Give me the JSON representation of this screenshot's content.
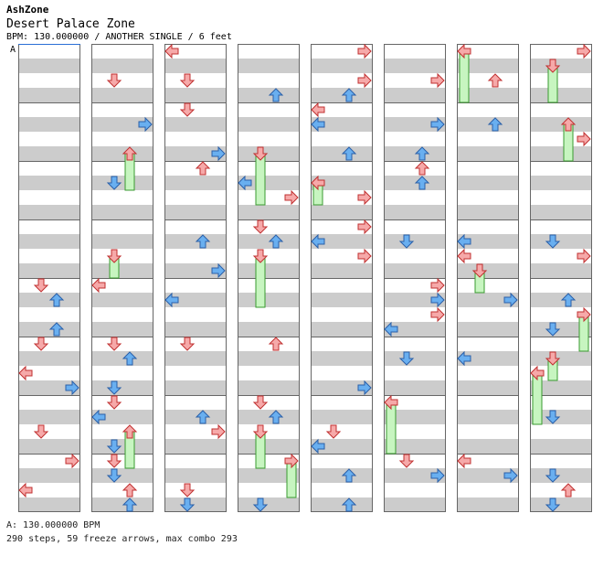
{
  "header": {
    "site": "AshZone",
    "song_title": "Desert Palace Zone",
    "chart_info": "BPM: 130.000000 / ANOTHER SINGLE / 6 feet"
  },
  "bpm_marker": {
    "label": "A"
  },
  "colors": {
    "red_arrow": "#f6a9a9",
    "blue_arrow": "#69aff0",
    "freeze": "#c7f5c0",
    "stripe": "#cccccc"
  },
  "footer": {
    "bpm_line": "A: 130.000000 BPM",
    "stats_line": "290 steps, 59 freeze arrows, max combo 293"
  }
}
